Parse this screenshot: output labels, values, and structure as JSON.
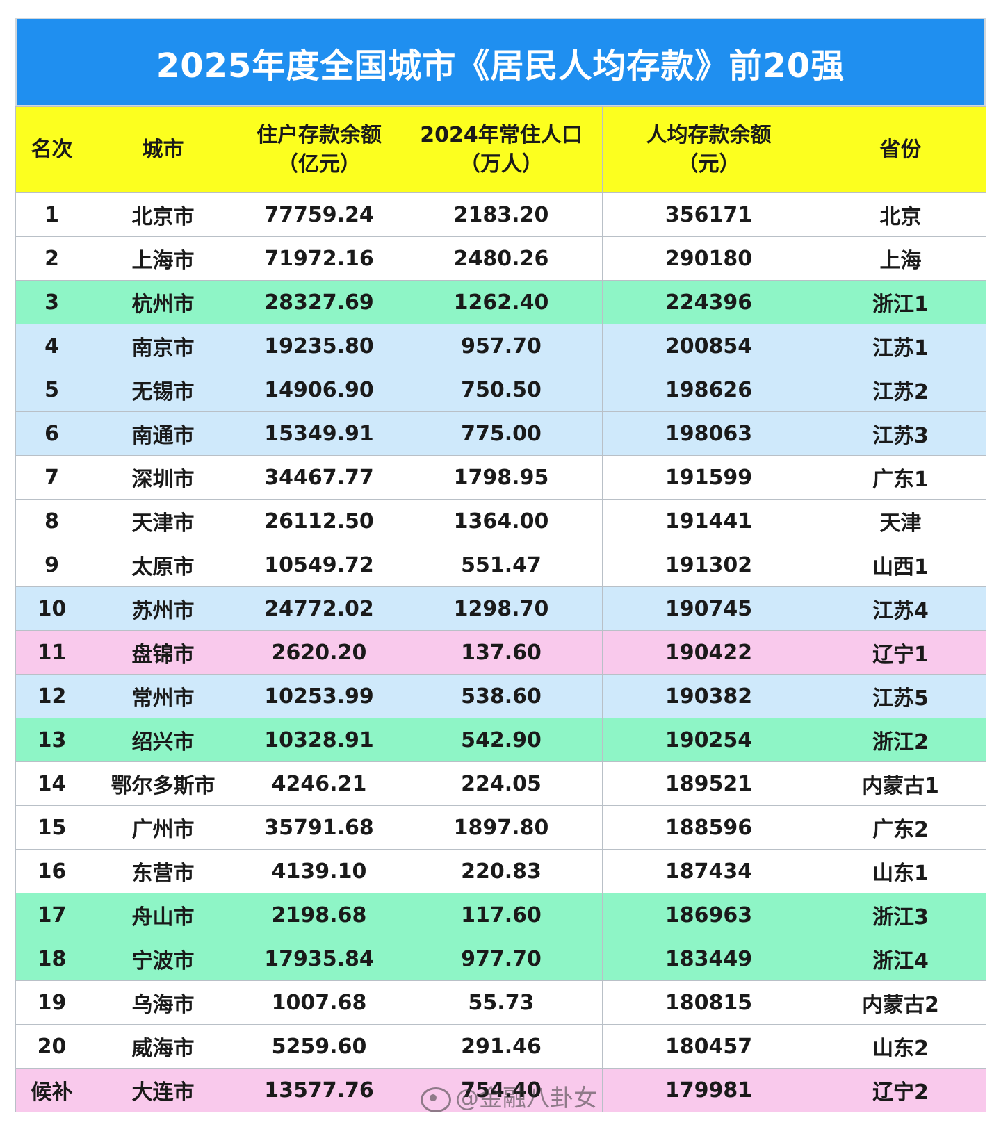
{
  "title": "2025年度全国城市《居民人均存款》前20强",
  "headers": {
    "rank": "名次",
    "city": "城市",
    "deposit_line1": "住户存款余额",
    "deposit_line2": "（亿元）",
    "pop_line1": "2024年常住人口",
    "pop_line2": "（万人）",
    "per_line1": "人均存款余额",
    "per_line2": "（元）",
    "province": "省份"
  },
  "rows": [
    {
      "rank": "1",
      "city": "北京市",
      "deposit": "77759.24",
      "population": "2183.20",
      "per_capita": "356171",
      "province": "北京",
      "color": "white"
    },
    {
      "rank": "2",
      "city": "上海市",
      "deposit": "71972.16",
      "population": "2480.26",
      "per_capita": "290180",
      "province": "上海",
      "color": "white"
    },
    {
      "rank": "3",
      "city": "杭州市",
      "deposit": "28327.69",
      "population": "1262.40",
      "per_capita": "224396",
      "province": "浙江1",
      "color": "green"
    },
    {
      "rank": "4",
      "city": "南京市",
      "deposit": "19235.80",
      "population": "957.70",
      "per_capita": "200854",
      "province": "江苏1",
      "color": "blue"
    },
    {
      "rank": "5",
      "city": "无锡市",
      "deposit": "14906.90",
      "population": "750.50",
      "per_capita": "198626",
      "province": "江苏2",
      "color": "blue"
    },
    {
      "rank": "6",
      "city": "南通市",
      "deposit": "15349.91",
      "population": "775.00",
      "per_capita": "198063",
      "province": "江苏3",
      "color": "blue"
    },
    {
      "rank": "7",
      "city": "深圳市",
      "deposit": "34467.77",
      "population": "1798.95",
      "per_capita": "191599",
      "province": "广东1",
      "color": "white"
    },
    {
      "rank": "8",
      "city": "天津市",
      "deposit": "26112.50",
      "population": "1364.00",
      "per_capita": "191441",
      "province": "天津",
      "color": "white"
    },
    {
      "rank": "9",
      "city": "太原市",
      "deposit": "10549.72",
      "population": "551.47",
      "per_capita": "191302",
      "province": "山西1",
      "color": "white"
    },
    {
      "rank": "10",
      "city": "苏州市",
      "deposit": "24772.02",
      "population": "1298.70",
      "per_capita": "190745",
      "province": "江苏4",
      "color": "blue"
    },
    {
      "rank": "11",
      "city": "盘锦市",
      "deposit": "2620.20",
      "population": "137.60",
      "per_capita": "190422",
      "province": "辽宁1",
      "color": "pink"
    },
    {
      "rank": "12",
      "city": "常州市",
      "deposit": "10253.99",
      "population": "538.60",
      "per_capita": "190382",
      "province": "江苏5",
      "color": "blue"
    },
    {
      "rank": "13",
      "city": "绍兴市",
      "deposit": "10328.91",
      "population": "542.90",
      "per_capita": "190254",
      "province": "浙江2",
      "color": "green"
    },
    {
      "rank": "14",
      "city": "鄂尔多斯市",
      "deposit": "4246.21",
      "population": "224.05",
      "per_capita": "189521",
      "province": "内蒙古1",
      "color": "white"
    },
    {
      "rank": "15",
      "city": "广州市",
      "deposit": "35791.68",
      "population": "1897.80",
      "per_capita": "188596",
      "province": "广东2",
      "color": "white"
    },
    {
      "rank": "16",
      "city": "东营市",
      "deposit": "4139.10",
      "population": "220.83",
      "per_capita": "187434",
      "province": "山东1",
      "color": "white"
    },
    {
      "rank": "17",
      "city": "舟山市",
      "deposit": "2198.68",
      "population": "117.60",
      "per_capita": "186963",
      "province": "浙江3",
      "color": "green"
    },
    {
      "rank": "18",
      "city": "宁波市",
      "deposit": "17935.84",
      "population": "977.70",
      "per_capita": "183449",
      "province": "浙江4",
      "color": "green"
    },
    {
      "rank": "19",
      "city": "乌海市",
      "deposit": "1007.68",
      "population": "55.73",
      "per_capita": "180815",
      "province": "内蒙古2",
      "color": "white"
    },
    {
      "rank": "20",
      "city": "威海市",
      "deposit": "5259.60",
      "population": "291.46",
      "per_capita": "180457",
      "province": "山东2",
      "color": "white"
    },
    {
      "rank": "候补",
      "city": "大连市",
      "deposit": "13577.76",
      "population": "754.40",
      "per_capita": "179981",
      "province": "辽宁2",
      "color": "pink"
    }
  ],
  "watermark": "@金融八卦女",
  "watermark_icon": "weibo-logo-icon"
}
